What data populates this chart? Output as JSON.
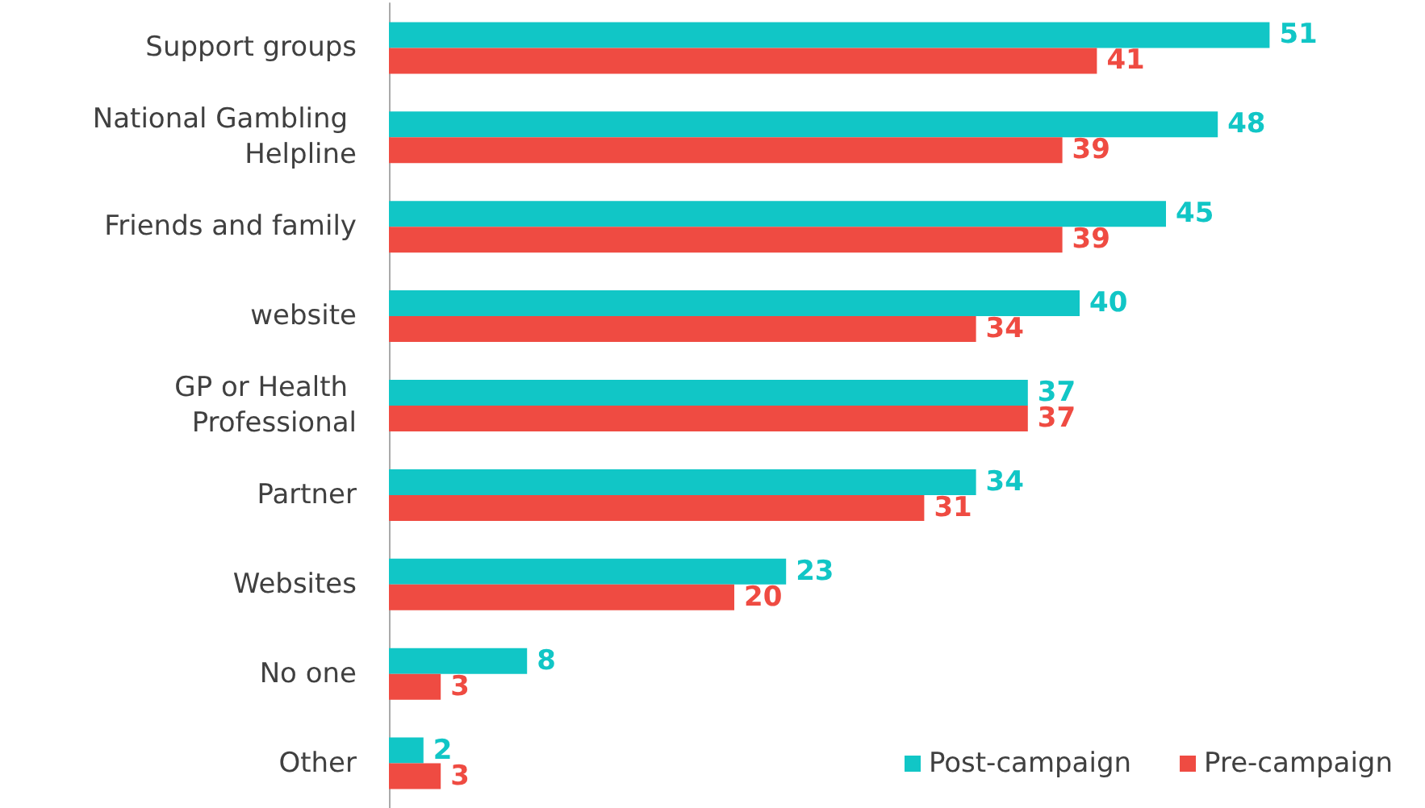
{
  "chart_data": {
    "type": "bar",
    "orientation": "horizontal",
    "categories": [
      "Support groups",
      "National Gambling Helpline",
      "Friends and family",
      "website",
      "GP or Health Professional",
      "Partner",
      "Websites",
      "No one",
      "Other"
    ],
    "series": [
      {
        "name": "Post-campaign",
        "color": "#11c6c6",
        "values": [
          51,
          48,
          45,
          40,
          37,
          34,
          23,
          8,
          2
        ]
      },
      {
        "name": "Pre-campaign",
        "color": "#ef4b42",
        "values": [
          41,
          39,
          39,
          34,
          37,
          31,
          20,
          3,
          3
        ]
      }
    ],
    "tick_labels": "y",
    "data_labels": true,
    "grid": false,
    "legend": "bottom right"
  }
}
